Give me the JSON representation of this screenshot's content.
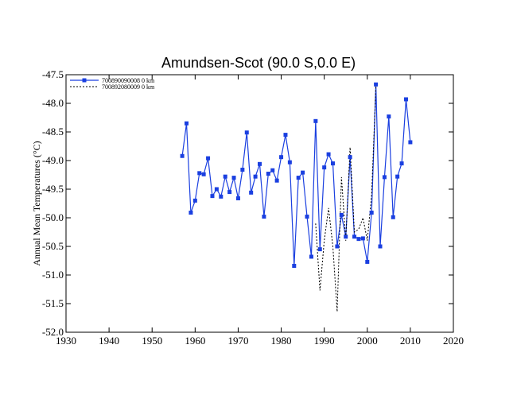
{
  "chart_data": {
    "type": "line",
    "title": "Amundsen-Scot (90.0 S,0.0 E)",
    "xlabel": "",
    "ylabel": "Annual Mean Temperatures (°C)",
    "xlim": [
      1930,
      2020
    ],
    "ylim": [
      -52.0,
      -47.5
    ],
    "x_ticks": [
      1930,
      1940,
      1950,
      1960,
      1970,
      1980,
      1990,
      2000,
      2010,
      2020
    ],
    "y_ticks": [
      -47.5,
      -48.0,
      -48.5,
      -49.0,
      -49.5,
      -50.0,
      -50.5,
      -51.0,
      -51.5,
      -52.0
    ],
    "y_tick_labels": [
      "-47.5",
      "-48.0",
      "-48.5",
      "-49.0",
      "-49.5",
      "-50.0",
      "-50.5",
      "-51.0",
      "-51.5",
      "-52.0"
    ],
    "grid": false,
    "legend_placement": "top-left",
    "series": [
      {
        "name": "700890090008  0 km",
        "color": "#1a3fe0",
        "style": "solid-markers",
        "points": [
          [
            1957,
            -48.92
          ],
          [
            1958,
            -48.35
          ],
          [
            1959,
            -49.91
          ],
          [
            1960,
            -49.7
          ],
          [
            1961,
            -49.22
          ],
          [
            1962,
            -49.24
          ],
          [
            1963,
            -48.96
          ],
          [
            1964,
            -49.62
          ],
          [
            1965,
            -49.5
          ],
          [
            1966,
            -49.63
          ],
          [
            1967,
            -49.28
          ],
          [
            1968,
            -49.55
          ],
          [
            1969,
            -49.3
          ],
          [
            1970,
            -49.66
          ],
          [
            1971,
            -49.16
          ],
          [
            1972,
            -48.51
          ],
          [
            1973,
            -49.56
          ],
          [
            1974,
            -49.28
          ],
          [
            1975,
            -49.06
          ],
          [
            1976,
            -49.98
          ],
          [
            1977,
            -49.23
          ],
          [
            1978,
            -49.17
          ],
          [
            1979,
            -49.35
          ],
          [
            1980,
            -48.94
          ],
          [
            1981,
            -48.55
          ],
          [
            1982,
            -49.03
          ],
          [
            1983,
            -50.84
          ],
          [
            1984,
            -49.3
          ],
          [
            1985,
            -49.21
          ],
          [
            1986,
            -49.98
          ],
          [
            1987,
            -50.68
          ],
          [
            1988,
            -48.31
          ],
          [
            1989,
            -50.55
          ],
          [
            1990,
            -49.12
          ],
          [
            1991,
            -48.89
          ],
          [
            1992,
            -49.05
          ],
          [
            1993,
            -50.5
          ],
          [
            1994,
            -49.95
          ],
          [
            1995,
            -50.33
          ],
          [
            1996,
            -48.94
          ],
          [
            1997,
            -50.33
          ],
          [
            1998,
            -50.37
          ],
          [
            1999,
            -50.36
          ],
          [
            2000,
            -50.77
          ],
          [
            2001,
            -49.91
          ],
          [
            2002,
            -47.67
          ],
          [
            2003,
            -50.5
          ],
          [
            2004,
            -49.29
          ],
          [
            2005,
            -48.23
          ],
          [
            2006,
            -49.99
          ],
          [
            2007,
            -49.28
          ],
          [
            2008,
            -49.05
          ],
          [
            2009,
            -47.93
          ],
          [
            2010,
            -48.68
          ]
        ]
      },
      {
        "name": "700892080009  0 km",
        "color": "#000000",
        "style": "dashed",
        "points": [
          [
            1988,
            -50.1
          ],
          [
            1989,
            -51.27
          ],
          [
            1990,
            -50.4
          ],
          [
            1991,
            -49.83
          ],
          [
            1992,
            -50.5
          ],
          [
            1993,
            -51.64
          ],
          [
            1994,
            -49.29
          ],
          [
            1995,
            -50.4
          ],
          [
            1996,
            -48.77
          ],
          [
            1997,
            -50.25
          ],
          [
            1998,
            -50.2
          ],
          [
            1999,
            -50.0
          ],
          [
            2000,
            -50.4
          ],
          [
            2001,
            -49.6
          ],
          [
            2002,
            -47.7
          ]
        ]
      }
    ]
  }
}
